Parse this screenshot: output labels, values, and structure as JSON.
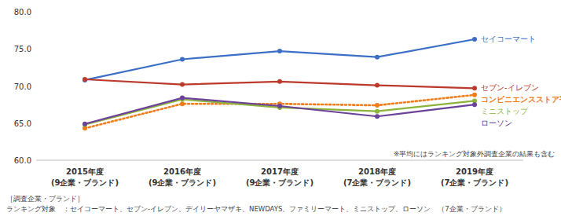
{
  "chart_data": {
    "type": "line",
    "categories": [
      "2015年度\n(9企業・ブランド)",
      "2016年度\n(9企業・ブランド)",
      "2017年度\n(9企業・ブランド)",
      "2018年度\n(7企業・ブランド)",
      "2019年度\n(7企業・ブランド)"
    ],
    "series": [
      {
        "name": "セイコーマート",
        "color": "#3b6fc6",
        "marker": "circle",
        "line_style": "solid",
        "values": [
          70.8,
          73.6,
          74.7,
          73.9,
          76.3
        ]
      },
      {
        "name": "セブン-イレブン",
        "color": "#bb3a2c",
        "marker": "circle",
        "line_style": "solid",
        "values": [
          70.9,
          70.2,
          70.6,
          70.1,
          69.7
        ]
      },
      {
        "name": "コンビニエンスストア平均",
        "color": "#f07c1b",
        "marker": "circle",
        "line_style": "dotted",
        "values": [
          64.3,
          67.6,
          67.6,
          67.4,
          68.8
        ]
      },
      {
        "name": "ミニストップ",
        "color": "#8cb43b",
        "marker": "circle",
        "line_style": "solid",
        "values": [
          64.8,
          68.2,
          67.1,
          66.6,
          68.0
        ]
      },
      {
        "name": "ローソン",
        "color": "#6b4199",
        "marker": "circle",
        "line_style": "solid",
        "values": [
          64.9,
          68.4,
          67.3,
          65.9,
          67.5
        ]
      }
    ],
    "ylim": [
      60,
      80
    ],
    "yticks": [
      {
        "value": 60,
        "label": "60.0"
      },
      {
        "value": 65,
        "label": "65.0"
      },
      {
        "value": 70,
        "label": "70.0"
      },
      {
        "value": 75,
        "label": "75.0"
      },
      {
        "value": 80,
        "label": "80.0"
      }
    ],
    "grid": false,
    "legend": "right",
    "annotations": [
      "※平均にはランキング対象外調査企業の結果も含む",
      "［調査企業・ブランド］",
      "ランキング対象　：セイコーマート、セブン-イレブン、デイリーヤマザキ、NEWDAYS、ファミリーマート、ミニストップ、ローソン　（7企業・ブランド）"
    ]
  }
}
